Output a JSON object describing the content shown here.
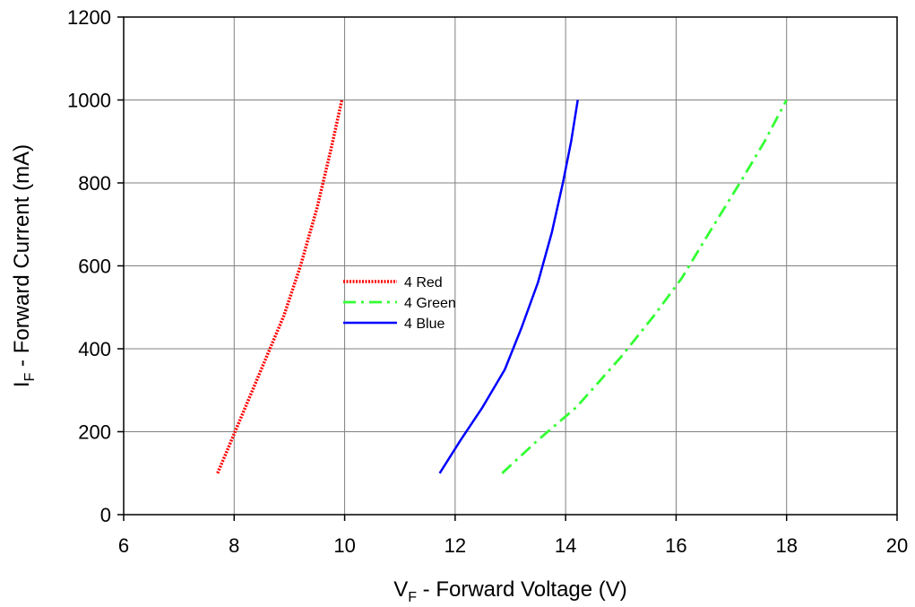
{
  "chart_data": {
    "type": "line",
    "title": "",
    "xlabel": {
      "main": "V",
      "sub": "F",
      "rest": " - Forward Voltage (V)"
    },
    "ylabel": {
      "main": "I",
      "sub": "F",
      "rest": " - Forward Current (mA)"
    },
    "xlim": [
      6,
      20
    ],
    "ylim": [
      0,
      1200
    ],
    "xticks": [
      6,
      8,
      10,
      12,
      14,
      16,
      18,
      20
    ],
    "yticks": [
      0,
      200,
      400,
      600,
      800,
      1000,
      1200
    ],
    "grid": true,
    "legend_position": "center-left",
    "series": [
      {
        "name": "4 Red",
        "color": "#ff0000",
        "style": "dotted",
        "x": [
          7.7,
          8.0,
          8.3,
          8.6,
          8.9,
          9.2,
          9.5,
          9.75,
          9.95
        ],
        "y": [
          100,
          195,
          290,
          385,
          480,
          600,
          740,
          880,
          1000
        ]
      },
      {
        "name": "4 Green",
        "color": "#33ff33",
        "style": "dashdot",
        "x": [
          12.85,
          13.5,
          14.2,
          15.0,
          15.6,
          16.1,
          16.6,
          17.2,
          17.6,
          18.0
        ],
        "y": [
          100,
          180,
          260,
          380,
          480,
          570,
          680,
          810,
          900,
          1000
        ]
      },
      {
        "name": "4 Blue",
        "color": "#0000ff",
        "style": "solid",
        "x": [
          11.72,
          12.1,
          12.5,
          12.9,
          13.2,
          13.5,
          13.75,
          13.95,
          14.1,
          14.22
        ],
        "y": [
          100,
          180,
          260,
          350,
          450,
          560,
          680,
          800,
          900,
          1000
        ]
      }
    ]
  }
}
